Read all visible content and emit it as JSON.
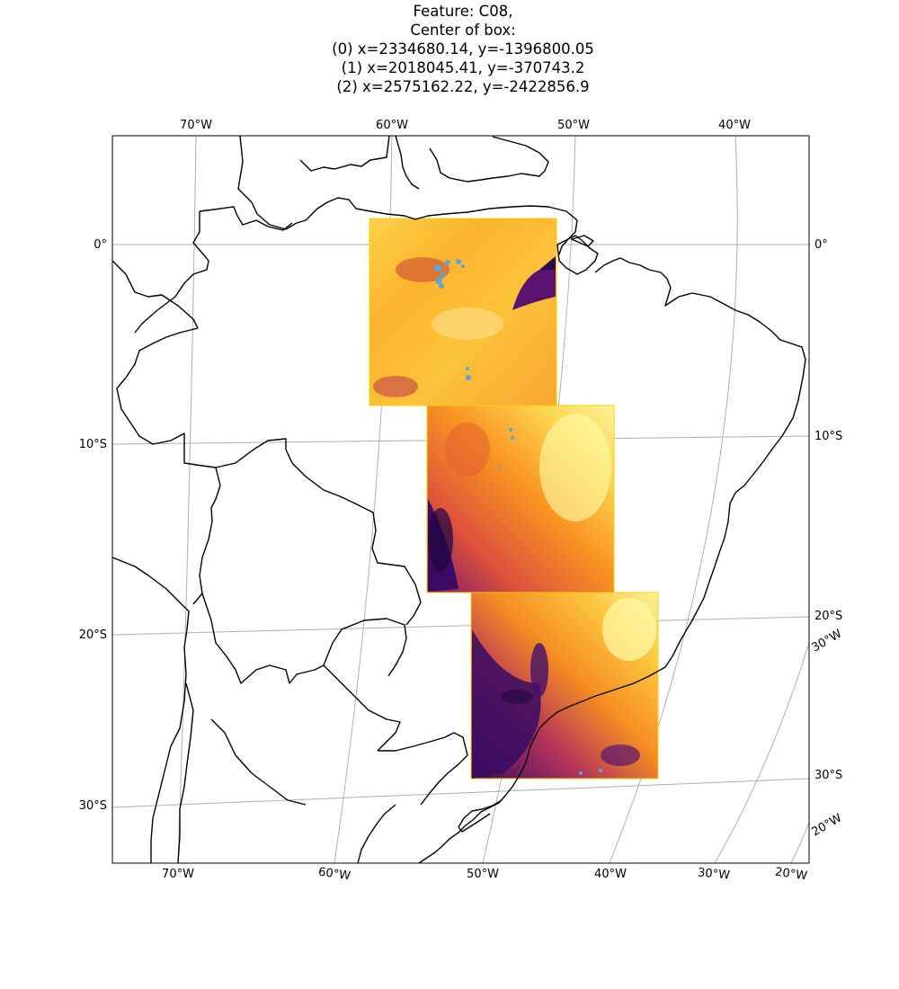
{
  "title": {
    "line1": "Feature: C08,",
    "line2": "Center of box:",
    "line3": "(0) x=2334680.14, y=-1396800.05",
    "line4": "(1) x=2018045.41, y=-370743.2",
    "line5": "(2) x=2575162.22, y=-2422856.9"
  },
  "ticks": {
    "top": [
      "70°W",
      "60°W",
      "50°W",
      "40°W"
    ],
    "left": [
      "0°",
      "10°S",
      "20°S",
      "30°S"
    ],
    "right": [
      "0°",
      "10°S",
      "20°S",
      "30°W",
      "30°S",
      "20°W"
    ],
    "bottom": [
      "70°W",
      "60°W",
      "50°W",
      "40°W",
      "30°W",
      "20°W"
    ]
  },
  "colors": {
    "coastline": "#000000",
    "gridline": "#b0b0b0",
    "colormap": [
      "#000004",
      "#420a68",
      "#932667",
      "#dd513a",
      "#fca50a",
      "#fcffa4"
    ],
    "cloud_mask": "#5aa6d6"
  }
}
